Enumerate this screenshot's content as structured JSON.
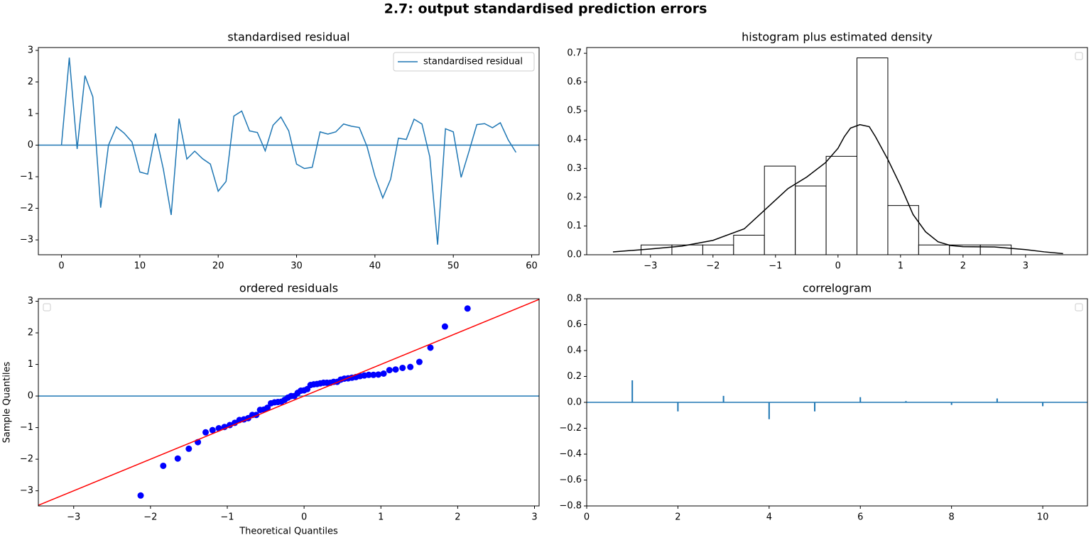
{
  "title": "2.7: output standardised prediction errors",
  "chart_data": [
    {
      "type": "line",
      "title": "standardised residual",
      "legend": "upper right",
      "x": [
        0,
        1,
        2,
        3,
        4,
        5,
        6,
        7,
        8,
        9,
        10,
        11,
        12,
        13,
        14,
        15,
        16,
        17,
        18,
        19,
        20,
        21,
        22,
        23,
        24,
        25,
        26,
        27,
        28,
        29,
        30,
        31,
        32,
        33,
        34,
        35,
        36,
        37,
        38,
        39,
        40,
        41,
        42,
        43,
        44,
        45,
        46,
        47,
        48,
        49,
        50,
        51,
        52,
        53,
        54,
        55,
        56,
        57,
        58
      ],
      "series": [
        {
          "name": "standardised residual",
          "color": "#1f77b4",
          "values": [
            0,
            2.77,
            -0.12,
            2.2,
            1.53,
            -1.98,
            0,
            0.58,
            0.38,
            0.1,
            -0.85,
            -0.92,
            0.37,
            -0.76,
            -2.21,
            0.84,
            -0.44,
            -0.19,
            -0.43,
            -0.6,
            -1.46,
            -1.15,
            0.92,
            1.08,
            0.45,
            0.4,
            -0.18,
            0.63,
            0.89,
            0.45,
            -0.6,
            -0.74,
            -0.7,
            0.42,
            0.35,
            0.42,
            0.67,
            0.6,
            0.56,
            -0.05,
            -0.98,
            -1.67,
            -1.08,
            0.22,
            0.18,
            0.82,
            0.67,
            -0.37,
            -3.15,
            0.52,
            0.42,
            -1.02,
            -0.2,
            0.65,
            0.68,
            0.55,
            0.71,
            0.17,
            -0.23
          ]
        }
      ],
      "hline": 0,
      "hline_color": "#1f77b4",
      "xlim": [
        -2.95,
        60.95
      ],
      "xticks": [
        0,
        10,
        20,
        30,
        40,
        50,
        60
      ],
      "ylim": [
        -3.47,
        3.09
      ],
      "yticks": [
        {
          "value": -3,
          "label": "−3"
        },
        {
          "value": -2,
          "label": "−2"
        },
        {
          "value": -1,
          "label": "−1"
        },
        0,
        1,
        2,
        3
      ]
    },
    {
      "type": "histogram",
      "title": "histogram plus estimated density",
      "legend": "upper right",
      "bins": [
        -3.15,
        -2.657,
        -2.163,
        -1.67,
        -1.177,
        -0.683,
        -0.19,
        0.303,
        0.797,
        1.29,
        1.783,
        2.277,
        2.77
      ],
      "values": [
        0.034,
        0.034,
        0.034,
        0.068,
        0.308,
        0.239,
        0.342,
        0.684,
        0.171,
        0.034,
        0.034,
        0.034
      ],
      "color": "#000000",
      "density": {
        "color": "#000000",
        "x": [
          -3.6,
          -3.0,
          -2.5,
          -2.0,
          -1.5,
          -1.2,
          -1.0,
          -0.8,
          -0.5,
          -0.2,
          0,
          0.1,
          0.2,
          0.35,
          0.5,
          0.6,
          0.8,
          1.0,
          1.2,
          1.4,
          1.6,
          1.8,
          2.0,
          2.5,
          3.0,
          3.3,
          3.6
        ],
        "values": [
          0.01,
          0.02,
          0.03,
          0.05,
          0.09,
          0.15,
          0.19,
          0.23,
          0.27,
          0.32,
          0.37,
          0.41,
          0.44,
          0.452,
          0.445,
          0.41,
          0.33,
          0.24,
          0.14,
          0.08,
          0.045,
          0.032,
          0.028,
          0.027,
          0.018,
          0.01,
          0.004
        ]
      },
      "xlim": [
        -4.02,
        3.99
      ],
      "xticks": [
        {
          "value": -3,
          "label": "−3"
        },
        {
          "value": -2,
          "label": "−2"
        },
        {
          "value": -1,
          "label": "−1"
        },
        0,
        1,
        2,
        3
      ],
      "ylim": [
        0,
        0.72
      ],
      "yticks": [
        {
          "value": 0,
          "label": "0.0"
        },
        0.1,
        0.2,
        0.3,
        0.4,
        0.5,
        0.6,
        0.7
      ]
    },
    {
      "type": "scatter",
      "title": "ordered residuals",
      "legend": "upper left",
      "x_label": "Theoretical Quantiles",
      "y_label": "Sample Quantiles",
      "color": "#0000ff",
      "reference_line_color": "#ff0000",
      "hline": 0,
      "hline_color": "#1f77b4",
      "x": [
        -2.128,
        -1.834,
        -1.645,
        -1.501,
        -1.383,
        -1.282,
        -1.192,
        -1.111,
        -1.036,
        -0.967,
        -0.903,
        -0.842,
        -0.784,
        -0.728,
        -0.674,
        -0.623,
        -0.573,
        -0.524,
        -0.477,
        -0.431,
        -0.385,
        -0.341,
        -0.297,
        -0.253,
        -0.21,
        -0.168,
        -0.126,
        -0.084,
        -0.042,
        0,
        0.042,
        0.084,
        0.126,
        0.168,
        0.21,
        0.253,
        0.297,
        0.341,
        0.385,
        0.431,
        0.477,
        0.524,
        0.573,
        0.623,
        0.674,
        0.728,
        0.784,
        0.842,
        0.903,
        0.967,
        1.036,
        1.111,
        1.192,
        1.282,
        1.383,
        1.501,
        1.645,
        1.834,
        2.128
      ],
      "values": [
        -3.15,
        -2.21,
        -1.98,
        -1.67,
        -1.46,
        -1.15,
        -1.08,
        -1.02,
        -0.98,
        -0.92,
        -0.85,
        -0.76,
        -0.74,
        -0.7,
        -0.6,
        -0.6,
        -0.44,
        -0.43,
        -0.37,
        -0.23,
        -0.2,
        -0.19,
        -0.18,
        -0.12,
        -0.05,
        0,
        0,
        0.1,
        0.17,
        0.18,
        0.22,
        0.35,
        0.37,
        0.38,
        0.4,
        0.42,
        0.42,
        0.42,
        0.45,
        0.45,
        0.52,
        0.55,
        0.56,
        0.58,
        0.6,
        0.63,
        0.65,
        0.67,
        0.67,
        0.68,
        0.71,
        0.82,
        0.84,
        0.89,
        0.92,
        1.08,
        1.53,
        2.2,
        2.77
      ],
      "xlim": [
        -3.46,
        3.06
      ],
      "xticks": [
        {
          "value": -3,
          "label": "−3"
        },
        {
          "value": -2,
          "label": "−2"
        },
        {
          "value": -1,
          "label": "−1"
        },
        0,
        1,
        2,
        3
      ],
      "ylim": [
        -3.48,
        3.08
      ],
      "yticks": [
        {
          "value": -3,
          "label": "−3"
        },
        {
          "value": -2,
          "label": "−2"
        },
        {
          "value": -1,
          "label": "−1"
        },
        0,
        1,
        2,
        3
      ]
    },
    {
      "type": "stem",
      "title": "correlogram",
      "legend": "upper right",
      "color": "#1f77b4",
      "hline": 0,
      "hline_color": "#1f77b4",
      "x": [
        1,
        2,
        3,
        4,
        5,
        6,
        7,
        8,
        9,
        10
      ],
      "values": [
        0.17,
        -0.07,
        0.05,
        -0.13,
        -0.07,
        0.04,
        0.01,
        -0.02,
        0.03,
        -0.03
      ],
      "xlim": [
        0,
        10.98
      ],
      "xticks": [
        0,
        2,
        4,
        6,
        8,
        10
      ],
      "ylim": [
        -0.8,
        0.8
      ],
      "yticks": [
        {
          "value": -0.8,
          "label": "−0.8"
        },
        {
          "value": -0.6,
          "label": "−0.6"
        },
        {
          "value": -0.4,
          "label": "−0.4"
        },
        {
          "value": -0.2,
          "label": "−0.2"
        },
        {
          "value": 0,
          "label": "0.0"
        },
        0.2,
        0.4,
        0.6,
        0.8
      ]
    }
  ]
}
